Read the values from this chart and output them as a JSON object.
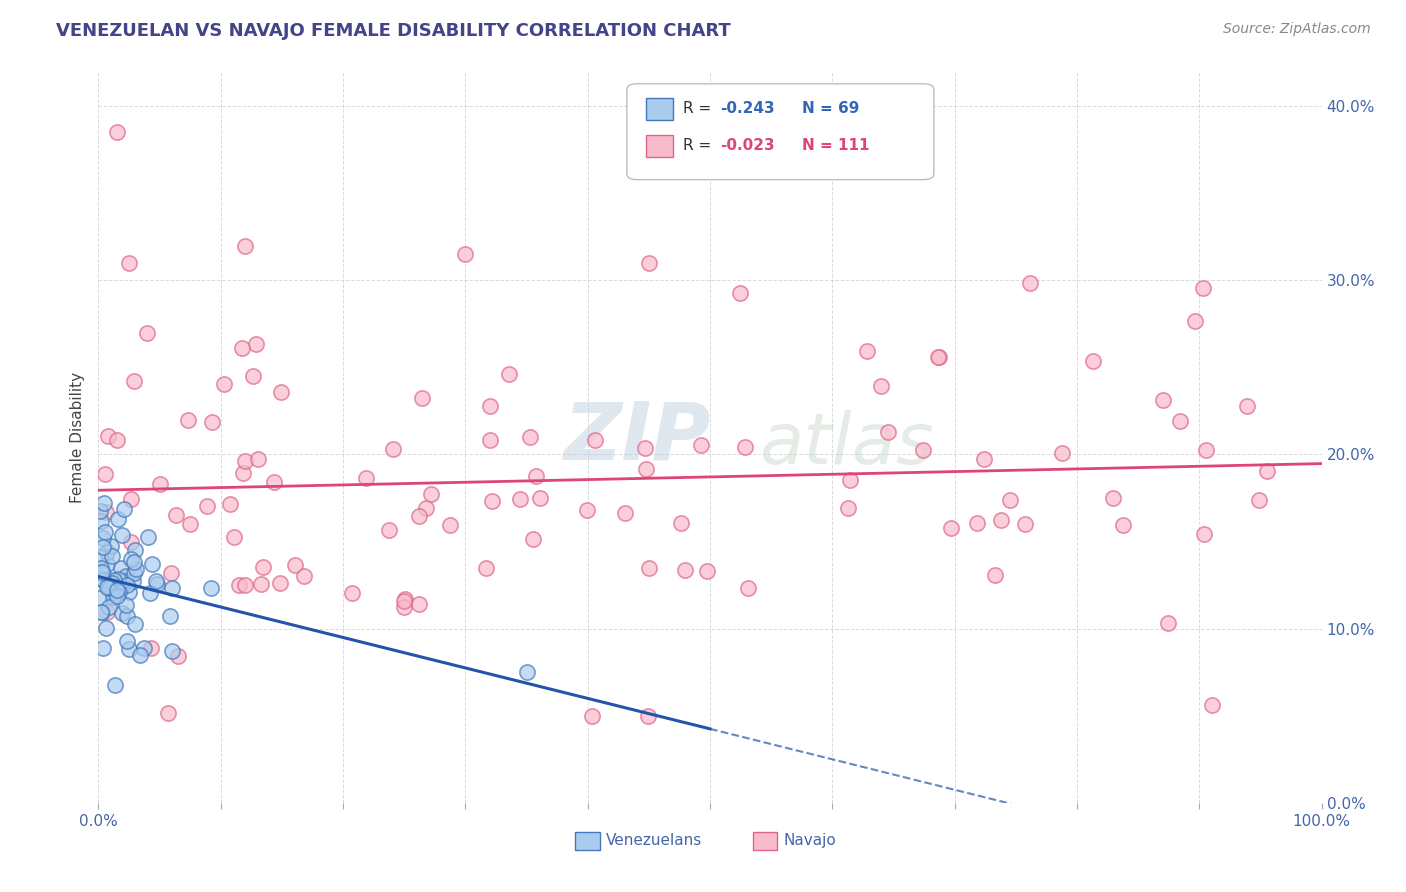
{
  "title": "VENEZUELAN VS NAVAJO FEMALE DISABILITY CORRELATION CHART",
  "source": "Source: ZipAtlas.com",
  "ylabel": "Female Disability",
  "watermark_zip": "ZIP",
  "watermark_atlas": "atlas",
  "legend_r1": "R = -0.243",
  "legend_n1": "N = 69",
  "legend_r2": "R = -0.023",
  "legend_n2": "N = 111",
  "legend_label1": "Venezuelans",
  "legend_label2": "Navajo",
  "xlim": [
    0.0,
    1.0
  ],
  "ylim": [
    0.0,
    0.42
  ],
  "ytick_vals": [
    0.0,
    0.1,
    0.2,
    0.3,
    0.4
  ],
  "ytick_labels": [
    "0.0%",
    "10.0%",
    "20.0%",
    "30.0%",
    "40.0%"
  ],
  "xtick_vals": [
    0.0,
    0.1,
    0.2,
    0.3,
    0.4,
    0.5,
    0.6,
    0.7,
    0.8,
    0.9,
    1.0
  ],
  "color_blue_face": "#AACCEE",
  "color_blue_edge": "#4477BB",
  "color_pink_face": "#F8BBCC",
  "color_pink_edge": "#DD6688",
  "line_blue_color": "#2255AA",
  "line_pink_color": "#DD4477",
  "background_color": "#FFFFFF",
  "grid_color": "#CCCCCC",
  "title_color": "#444488",
  "source_color": "#888888",
  "ylabel_color": "#444444",
  "tick_label_color": "#4466AA"
}
